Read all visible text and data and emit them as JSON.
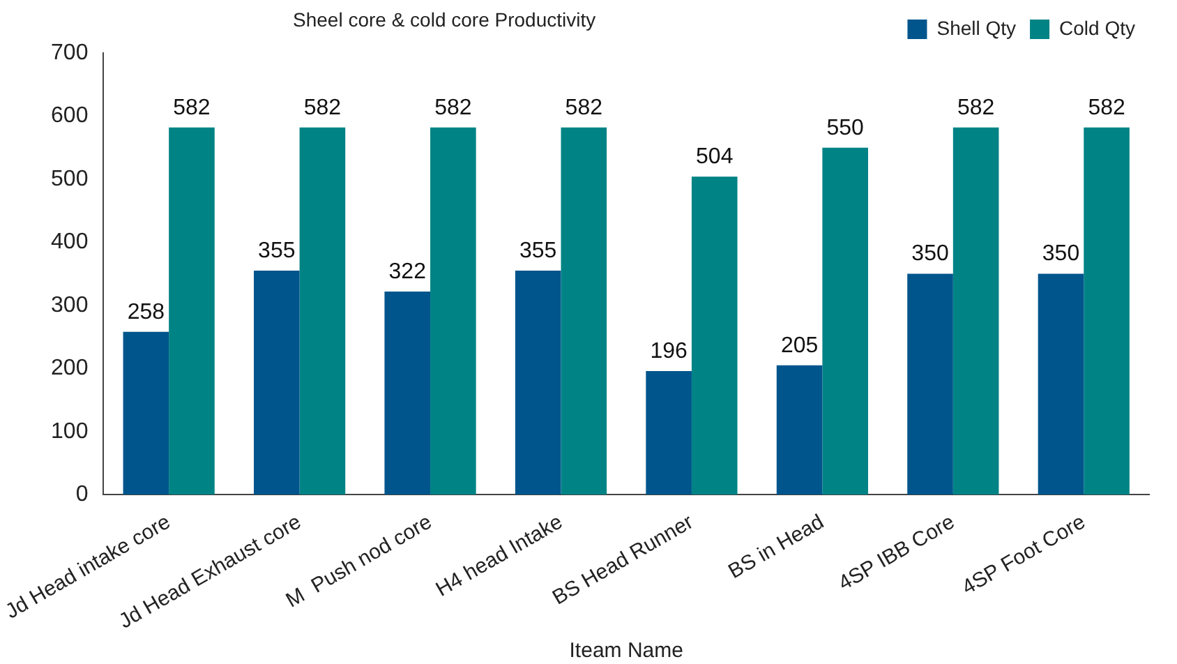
{
  "chart_data": {
    "type": "bar",
    "title": "Sheel core & cold core Productivity",
    "xlabel": "Iteam Name",
    "categories": [
      "Jd Head intake core",
      "Jd Head Exhaust core",
      "M  Push nod core",
      "H4 head Intake",
      "BS Head Runner",
      "BS in Head",
      "4SP IBB Core",
      "4SP Foot Core"
    ],
    "series": [
      {
        "name": "Shell Qty",
        "color": "#00558c",
        "values": [
          258,
          355,
          322,
          355,
          196,
          205,
          350,
          350
        ]
      },
      {
        "name": "Cold Qty",
        "color": "#008385",
        "values": [
          582,
          582,
          582,
          582,
          504,
          550,
          582,
          582
        ]
      }
    ],
    "ylim": [
      0,
      700
    ],
    "yticks": [
      0,
      100,
      200,
      300,
      400,
      500,
      600,
      700
    ],
    "grid": false,
    "legend": "top right",
    "data_labels": true
  }
}
